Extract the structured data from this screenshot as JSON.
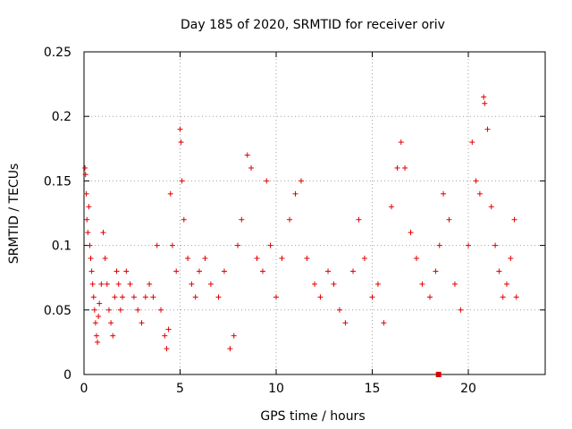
{
  "chart_data": {
    "type": "scatter",
    "title": "Day 185 of 2020, SRMTID for receiver oriv",
    "xlabel": "GPS time / hours",
    "ylabel": "SRMTID / TECUs",
    "xlim": [
      0,
      24
    ],
    "ylim": [
      0,
      0.25
    ],
    "xticks": [
      "0",
      "5",
      "10",
      "15",
      "20"
    ],
    "yticks": [
      "0",
      "0.05",
      "0.1",
      "0.15",
      "0.2",
      "0.25"
    ],
    "grid": true,
    "marker": "plus",
    "color": "#e00000",
    "series": [
      {
        "name": "SRMTID",
        "points": [
          [
            0.05,
            0.16
          ],
          [
            0.08,
            0.155
          ],
          [
            0.12,
            0.14
          ],
          [
            0.15,
            0.12
          ],
          [
            0.2,
            0.11
          ],
          [
            0.25,
            0.13
          ],
          [
            0.3,
            0.1
          ],
          [
            0.35,
            0.09
          ],
          [
            0.4,
            0.08
          ],
          [
            0.45,
            0.07
          ],
          [
            0.5,
            0.06
          ],
          [
            0.55,
            0.05
          ],
          [
            0.6,
            0.04
          ],
          [
            0.65,
            0.03
          ],
          [
            0.7,
            0.025
          ],
          [
            0.75,
            0.045
          ],
          [
            0.8,
            0.055
          ],
          [
            0.9,
            0.07
          ],
          [
            1.0,
            0.11
          ],
          [
            1.1,
            0.09
          ],
          [
            1.2,
            0.07
          ],
          [
            1.3,
            0.05
          ],
          [
            1.4,
            0.04
          ],
          [
            1.5,
            0.03
          ],
          [
            1.6,
            0.06
          ],
          [
            1.7,
            0.08
          ],
          [
            1.8,
            0.07
          ],
          [
            1.9,
            0.05
          ],
          [
            2.0,
            0.06
          ],
          [
            2.2,
            0.08
          ],
          [
            2.4,
            0.07
          ],
          [
            2.6,
            0.06
          ],
          [
            2.8,
            0.05
          ],
          [
            3.0,
            0.04
          ],
          [
            3.2,
            0.06
          ],
          [
            3.4,
            0.07
          ],
          [
            3.6,
            0.06
          ],
          [
            3.8,
            0.1
          ],
          [
            4.0,
            0.05
          ],
          [
            4.2,
            0.03
          ],
          [
            4.3,
            0.02
          ],
          [
            4.4,
            0.035
          ],
          [
            4.5,
            0.14
          ],
          [
            4.6,
            0.1
          ],
          [
            4.8,
            0.08
          ],
          [
            5.0,
            0.19
          ],
          [
            5.05,
            0.18
          ],
          [
            5.1,
            0.15
          ],
          [
            5.2,
            0.12
          ],
          [
            5.4,
            0.09
          ],
          [
            5.6,
            0.07
          ],
          [
            5.8,
            0.06
          ],
          [
            6.0,
            0.08
          ],
          [
            6.3,
            0.09
          ],
          [
            6.6,
            0.07
          ],
          [
            7.0,
            0.06
          ],
          [
            7.3,
            0.08
          ],
          [
            7.6,
            0.02
          ],
          [
            7.8,
            0.03
          ],
          [
            8.0,
            0.1
          ],
          [
            8.2,
            0.12
          ],
          [
            8.5,
            0.17
          ],
          [
            8.7,
            0.16
          ],
          [
            9.0,
            0.09
          ],
          [
            9.3,
            0.08
          ],
          [
            9.5,
            0.15
          ],
          [
            9.7,
            0.1
          ],
          [
            10.0,
            0.06
          ],
          [
            10.3,
            0.09
          ],
          [
            10.7,
            0.12
          ],
          [
            11.0,
            0.14
          ],
          [
            11.3,
            0.15
          ],
          [
            11.6,
            0.09
          ],
          [
            12.0,
            0.07
          ],
          [
            12.3,
            0.06
          ],
          [
            12.7,
            0.08
          ],
          [
            13.0,
            0.07
          ],
          [
            13.3,
            0.05
          ],
          [
            13.6,
            0.04
          ],
          [
            14.0,
            0.08
          ],
          [
            14.3,
            0.12
          ],
          [
            14.6,
            0.09
          ],
          [
            15.0,
            0.06
          ],
          [
            15.3,
            0.07
          ],
          [
            15.6,
            0.04
          ],
          [
            16.0,
            0.13
          ],
          [
            16.3,
            0.16
          ],
          [
            16.5,
            0.18
          ],
          [
            16.7,
            0.16
          ],
          [
            17.0,
            0.11
          ],
          [
            17.3,
            0.09
          ],
          [
            17.6,
            0.07
          ],
          [
            18.0,
            0.06
          ],
          [
            18.3,
            0.08
          ],
          [
            18.5,
            0.1
          ],
          [
            18.7,
            0.14
          ],
          [
            19.0,
            0.12
          ],
          [
            19.3,
            0.07
          ],
          [
            19.6,
            0.05
          ],
          [
            20.0,
            0.1
          ],
          [
            20.2,
            0.18
          ],
          [
            20.4,
            0.15
          ],
          [
            20.6,
            0.14
          ],
          [
            20.8,
            0.215
          ],
          [
            20.85,
            0.21
          ],
          [
            21.0,
            0.19
          ],
          [
            21.2,
            0.13
          ],
          [
            21.4,
            0.1
          ],
          [
            21.6,
            0.08
          ],
          [
            21.8,
            0.06
          ],
          [
            22.0,
            0.07
          ],
          [
            22.2,
            0.09
          ],
          [
            22.4,
            0.12
          ],
          [
            22.5,
            0.06
          ]
        ]
      }
    ],
    "outlier": {
      "x": 18.45,
      "y": 0.0
    }
  }
}
